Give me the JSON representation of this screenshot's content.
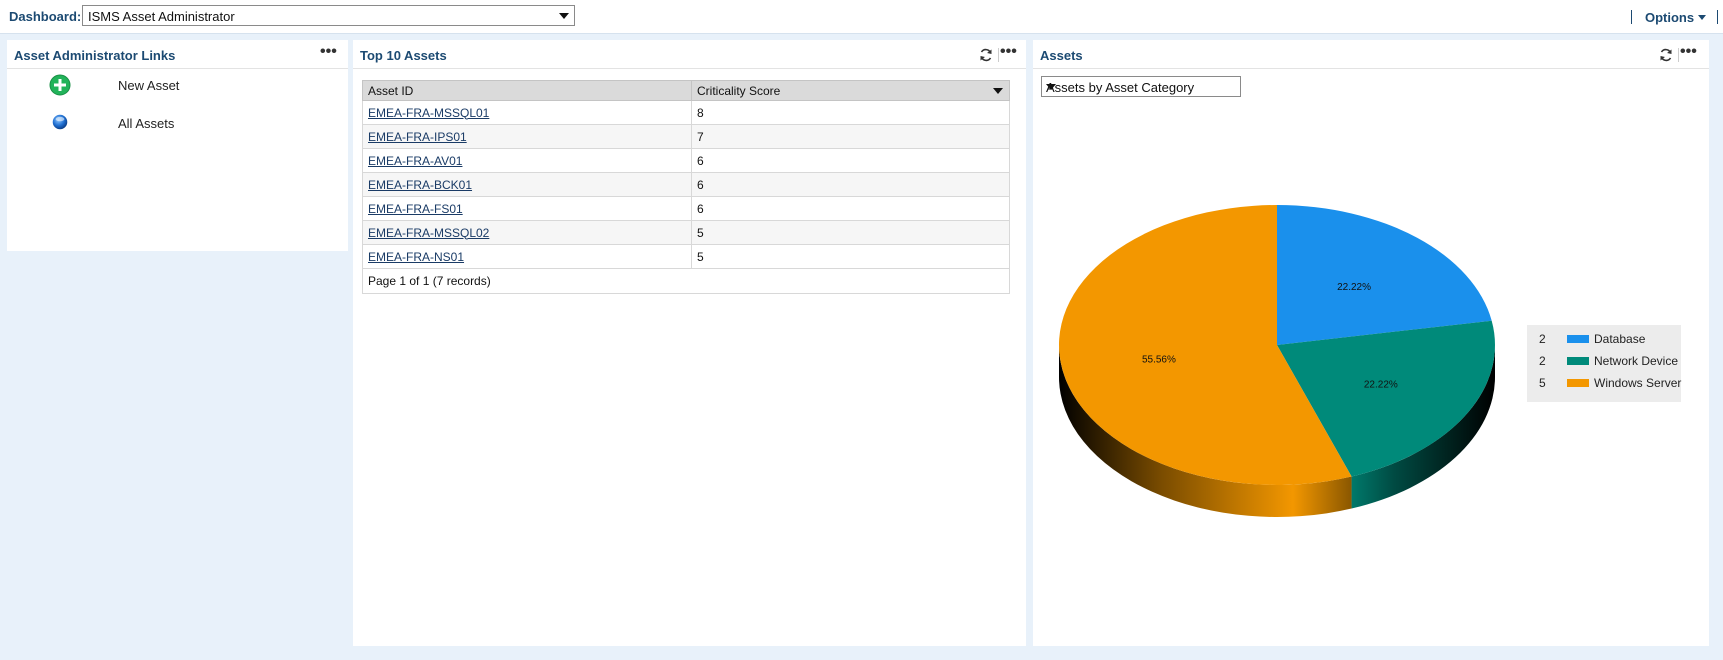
{
  "topbar": {
    "dashboard_label": "Dashboard:",
    "dashboard_value": "ISMS Asset Administrator",
    "options_label": "Options"
  },
  "links_panel": {
    "title": "Asset Administrator Links",
    "items": [
      {
        "label": "New Asset",
        "icon": "plus-circle-icon"
      },
      {
        "label": "All Assets",
        "icon": "globe-icon"
      }
    ]
  },
  "top_assets": {
    "title": "Top 10 Assets",
    "columns": [
      "Asset ID",
      "Criticality Score"
    ],
    "rows": [
      {
        "id": "EMEA-FRA-MSSQL01",
        "score": "8"
      },
      {
        "id": "EMEA-FRA-IPS01",
        "score": "7"
      },
      {
        "id": "EMEA-FRA-AV01",
        "score": "6"
      },
      {
        "id": "EMEA-FRA-BCK01",
        "score": "6"
      },
      {
        "id": "EMEA-FRA-FS01",
        "score": "6"
      },
      {
        "id": "EMEA-FRA-MSSQL02",
        "score": "5"
      },
      {
        "id": "EMEA-FRA-NS01",
        "score": "5"
      }
    ],
    "pager": "Page 1 of 1 (7 records)"
  },
  "assets_panel": {
    "title": "Assets",
    "chart_select_value": "Assets by Asset Category"
  },
  "chart_data": {
    "type": "pie",
    "style": "3d",
    "legend_position": "right",
    "slices": [
      {
        "name": "Database",
        "value": 2,
        "label": "22.22%",
        "color": "#1a90ec"
      },
      {
        "name": "Network Device",
        "value": 2,
        "label": "22.22%",
        "color": "#008a7a"
      },
      {
        "name": "Windows Server",
        "value": 5,
        "label": "55.56%",
        "color": "#f39700"
      }
    ]
  },
  "colors": {
    "header_text": "#1c4a72",
    "page_background": "#e8f1fa"
  }
}
